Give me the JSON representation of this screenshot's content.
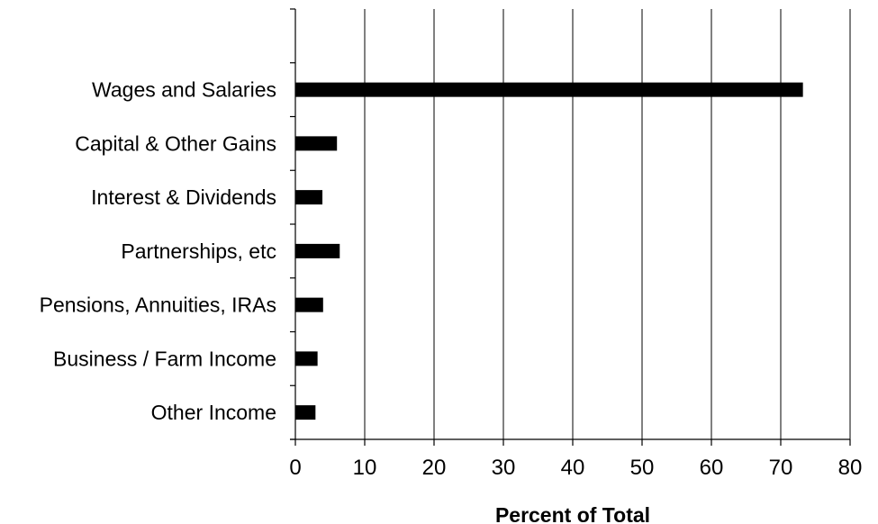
{
  "chart_data": {
    "type": "bar",
    "orientation": "horizontal",
    "categories": [
      "",
      "Wages and Salaries",
      "Capital & Other Gains",
      "Interest & Dividends",
      "Partnerships, etc",
      "Pensions, Annuities, IRAs",
      "Business / Farm Income",
      "Other Income"
    ],
    "values": [
      null,
      73.2,
      6.0,
      3.9,
      6.4,
      4.0,
      3.2,
      2.9
    ],
    "xlabel": "Percent of Total",
    "ylabel": "",
    "title": "",
    "xlim": [
      0,
      80
    ],
    "xticks": [
      0,
      10,
      20,
      30,
      40,
      50,
      60,
      70,
      80
    ],
    "grid": "vertical",
    "legend": "none",
    "colors": {
      "bar": "#000000",
      "grid": "#000000",
      "background": "#ffffff"
    }
  }
}
